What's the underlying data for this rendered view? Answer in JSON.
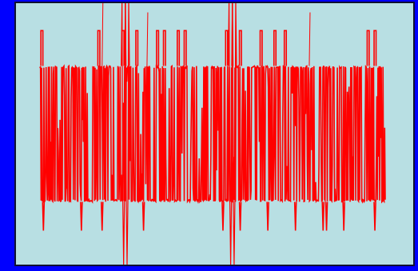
{
  "window": {
    "background": "#0000ff"
  },
  "plot": {
    "background": "#b8dfe3",
    "border_color": "#101030"
  },
  "chart_data": {
    "type": "line",
    "title": "",
    "xlabel": "",
    "ylabel": "",
    "grid": false,
    "legend": "none",
    "x_range": [
      0,
      1
    ],
    "y_range": [
      -1,
      1
    ],
    "series": [
      {
        "color": "#ff0000",
        "band_high": 0.52,
        "band_low": -0.52,
        "outer_high": 0.93,
        "outer_low": -1.0,
        "spike_x": [
          0.24,
          0.25,
          0.55,
          0.56
        ],
        "pulse_x": [
          0.005,
          0.17,
          0.24,
          0.28,
          0.34,
          0.36,
          0.4,
          0.42,
          0.54,
          0.58,
          0.64,
          0.68,
          0.71,
          0.95,
          0.97
        ],
        "dip_x": [
          0.01,
          0.12,
          0.18,
          0.3,
          0.53,
          0.58,
          0.66,
          0.74,
          0.82,
          0.83,
          0.88,
          0.97
        ]
      }
    ]
  }
}
